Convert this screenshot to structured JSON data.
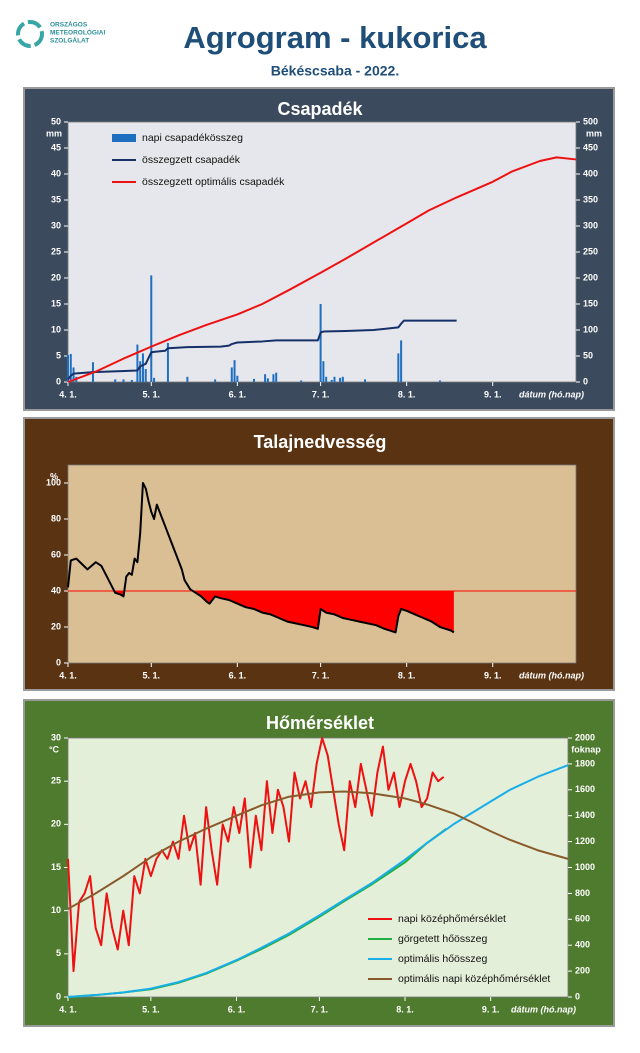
{
  "header": {
    "logo_text": [
      "ORSZÁGOS",
      "METEOROLÓGIAI",
      "SZOLGÁLAT"
    ],
    "title": "Agrogram - kukorica",
    "subtitle": "Békéscsaba - 2022."
  },
  "chart_data": [
    {
      "type": "combo",
      "title": "Csapadék",
      "panel_color": "#3b4a5d",
      "plot_color": "#e6e7ec",
      "xlabel": "dátum (hó.nap)",
      "ylabel": "mm",
      "y2label": "mm",
      "xlim": [
        0,
        183
      ],
      "xticks": [
        {
          "value": 0,
          "label": "4. 1."
        },
        {
          "value": 30,
          "label": "5. 1."
        },
        {
          "value": 61,
          "label": "6. 1."
        },
        {
          "value": 91,
          "label": "7. 1."
        },
        {
          "value": 122,
          "label": "8. 1."
        },
        {
          "value": 153,
          "label": "9. 1."
        }
      ],
      "ylim": [
        0,
        50
      ],
      "yticks": [
        0,
        5,
        10,
        15,
        20,
        25,
        30,
        35,
        40,
        45,
        50
      ],
      "y2lim": [
        0,
        500
      ],
      "y2ticks": [
        0,
        50,
        100,
        150,
        200,
        250,
        300,
        350,
        400,
        450,
        500
      ],
      "legend": "upper left",
      "series": [
        {
          "name": "napi csapadékösszeg",
          "type": "bar",
          "color": "#1f6fc0",
          "x": [
            0,
            1,
            2,
            3,
            9,
            17,
            20,
            23,
            25,
            26,
            27,
            28,
            30,
            31,
            36,
            43,
            53,
            59,
            60,
            61,
            67,
            71,
            72,
            74,
            75,
            84,
            91,
            92,
            93,
            95,
            96,
            98,
            99,
            107,
            119,
            120,
            134
          ],
          "values": [
            5.2,
            5.4,
            2.8,
            1.0,
            3.8,
            0.5,
            0.5,
            0.4,
            7.2,
            4.0,
            5.5,
            2.5,
            20.5,
            0.8,
            7.5,
            1.0,
            0.5,
            2.8,
            4.2,
            1.2,
            0.6,
            1.5,
            0.7,
            1.5,
            1.8,
            0.3,
            15.0,
            4.0,
            1.0,
            0.4,
            1.0,
            0.8,
            1.0,
            0.5,
            5.5,
            8.0,
            0.3
          ]
        },
        {
          "name": "összegzett csapadék",
          "type": "line",
          "axis": "y2",
          "color": "#16306a",
          "x": [
            0,
            1,
            2,
            9,
            25,
            26,
            28,
            30,
            31,
            35,
            36,
            43,
            55,
            58,
            59,
            61,
            70,
            75,
            90,
            91,
            92,
            100,
            110,
            119,
            120,
            121,
            140
          ],
          "values": [
            5,
            12,
            16,
            19,
            22,
            30,
            35,
            57,
            58,
            60,
            65,
            67,
            68,
            70,
            73,
            76,
            78,
            80,
            80,
            95,
            97,
            98,
            100,
            105,
            112,
            118,
            118
          ]
        },
        {
          "name": "összegzett optimális csapadék",
          "type": "line",
          "axis": "y2",
          "color": "#ee1111",
          "x": [
            0,
            10,
            20,
            30,
            40,
            50,
            61,
            70,
            80,
            91,
            100,
            110,
            122,
            130,
            140,
            153,
            160,
            170,
            176,
            183
          ],
          "values": [
            0,
            20,
            45,
            68,
            90,
            110,
            130,
            150,
            178,
            210,
            237,
            268,
            305,
            330,
            355,
            385,
            405,
            425,
            432,
            428
          ]
        }
      ]
    },
    {
      "type": "line",
      "title": "Talajnedvesség",
      "panel_color": "#5a3412",
      "plot_color": "#dbbf94",
      "xlabel": "dátum (hó.nap)",
      "ylabel": "%",
      "xlim": [
        0,
        183
      ],
      "xticks": [
        {
          "value": 0,
          "label": "4. 1."
        },
        {
          "value": 30,
          "label": "5. 1."
        },
        {
          "value": 61,
          "label": "6. 1."
        },
        {
          "value": 91,
          "label": "7. 1."
        },
        {
          "value": 122,
          "label": "8. 1."
        },
        {
          "value": 153,
          "label": "9. 1."
        }
      ],
      "ylim": [
        0,
        110
      ],
      "yticks": [
        0,
        20,
        40,
        60,
        80,
        100
      ],
      "threshold": 40,
      "threshold_color": "#ff0000",
      "series": [
        {
          "type": "line",
          "color": "#000000",
          "x": [
            0,
            1,
            3,
            5,
            7,
            10,
            12,
            14,
            16,
            17,
            19,
            20,
            21,
            22,
            23,
            24,
            25,
            26,
            27,
            28,
            29,
            30,
            31,
            32,
            33,
            35,
            37,
            39,
            41,
            42,
            44,
            46,
            48,
            50,
            51,
            53,
            55,
            58,
            61,
            64,
            67,
            70,
            73,
            76,
            79,
            82,
            85,
            88,
            90,
            91,
            93,
            96,
            99,
            102,
            105,
            108,
            111,
            114,
            116,
            118,
            119,
            120,
            122,
            125,
            128,
            131,
            134,
            136,
            138,
            139
          ],
          "values": [
            42,
            57,
            58,
            55,
            52,
            56,
            54,
            48,
            42,
            39,
            38,
            37,
            48,
            50,
            49,
            58,
            56,
            72,
            100,
            97,
            90,
            84,
            80,
            88,
            84,
            76,
            68,
            60,
            52,
            46,
            41,
            39,
            37,
            34,
            33,
            37,
            36,
            35,
            33,
            31,
            30,
            28,
            27,
            25,
            23,
            22,
            21,
            20,
            19,
            30,
            28,
            27,
            25,
            24,
            23,
            22,
            21,
            19,
            18,
            17,
            26,
            30,
            29,
            27,
            25,
            23,
            20,
            19,
            18,
            17
          ]
        }
      ]
    },
    {
      "type": "line",
      "title": "Hőmérséklet",
      "panel_color": "#4f7b2f",
      "plot_color": "#e4efd9",
      "xlabel": "dátum (hó.nap)",
      "ylabel": "°C",
      "y2label": "foknap",
      "xlim": [
        0,
        181
      ],
      "xticks": [
        {
          "value": 0,
          "label": "4. 1."
        },
        {
          "value": 30,
          "label": "5. 1."
        },
        {
          "value": 61,
          "label": "6. 1."
        },
        {
          "value": 91,
          "label": "7. 1."
        },
        {
          "value": 122,
          "label": "8. 1."
        },
        {
          "value": 153,
          "label": "9. 1."
        }
      ],
      "ylim": [
        0,
        30
      ],
      "yticks": [
        0,
        5,
        10,
        15,
        20,
        25,
        30
      ],
      "y2lim": [
        0,
        2000
      ],
      "y2ticks": [
        0,
        200,
        400,
        600,
        800,
        1000,
        1200,
        1400,
        1600,
        1800,
        2000
      ],
      "legend": "lower right",
      "series": [
        {
          "name": "napi középhőmérséklet",
          "type": "line",
          "color": "#ee1111",
          "x": [
            0,
            2,
            4,
            6,
            8,
            10,
            12,
            14,
            16,
            18,
            20,
            22,
            24,
            26,
            28,
            30,
            32,
            34,
            36,
            38,
            40,
            42,
            44,
            46,
            48,
            50,
            52,
            54,
            56,
            58,
            60,
            62,
            64,
            66,
            68,
            70,
            72,
            74,
            76,
            78,
            80,
            82,
            84,
            86,
            88,
            90,
            92,
            94,
            96,
            98,
            100,
            102,
            104,
            106,
            108,
            110,
            112,
            114,
            116,
            118,
            120,
            122,
            124,
            126,
            128,
            130,
            132,
            134,
            136
          ],
          "values": [
            16,
            3,
            11,
            12,
            14,
            8,
            6,
            12,
            8,
            5.5,
            10,
            6,
            14,
            12,
            16,
            14,
            16,
            17,
            16,
            18,
            16,
            21,
            17,
            19,
            13,
            22,
            17,
            13,
            20,
            18,
            22,
            19,
            23,
            15,
            21,
            17,
            25,
            19,
            24,
            22,
            18,
            26,
            23,
            25,
            22,
            27,
            30,
            28,
            24,
            20,
            17,
            25,
            22,
            27,
            24,
            21,
            26,
            29,
            24,
            26,
            22,
            25,
            27,
            25,
            22,
            23,
            26,
            25,
            25.5
          ]
        },
        {
          "name": "görgetett hőösszeg",
          "type": "line",
          "axis": "y2",
          "color": "#1fb040",
          "x": [
            0,
            10,
            20,
            30,
            40,
            50,
            61,
            70,
            80,
            91,
            100,
            110,
            122,
            130,
            137
          ],
          "values": [
            0,
            15,
            35,
            60,
            110,
            180,
            280,
            370,
            480,
            620,
            740,
            870,
            1040,
            1190,
            1300
          ]
        },
        {
          "name": "optimális hőösszeg",
          "type": "line",
          "axis": "y2",
          "color": "#1aaee8",
          "x": [
            0,
            10,
            20,
            30,
            40,
            50,
            61,
            70,
            80,
            91,
            100,
            110,
            122,
            130,
            140,
            153,
            160,
            170,
            181
          ],
          "values": [
            0,
            15,
            35,
            65,
            115,
            185,
            285,
            380,
            490,
            630,
            750,
            880,
            1060,
            1190,
            1340,
            1510,
            1600,
            1700,
            1790
          ]
        },
        {
          "name": "optimális napi középhőmérséklet",
          "type": "line",
          "color": "#8b5a2b",
          "x": [
            0,
            10,
            20,
            30,
            40,
            50,
            61,
            70,
            80,
            91,
            100,
            110,
            122,
            130,
            140,
            153,
            160,
            170,
            181
          ],
          "values": [
            10.2,
            12,
            14,
            16.2,
            18,
            19.5,
            21,
            22.2,
            23.2,
            23.7,
            23.8,
            23.6,
            23,
            22.3,
            21.2,
            19.2,
            18.2,
            17,
            16
          ]
        }
      ]
    }
  ]
}
